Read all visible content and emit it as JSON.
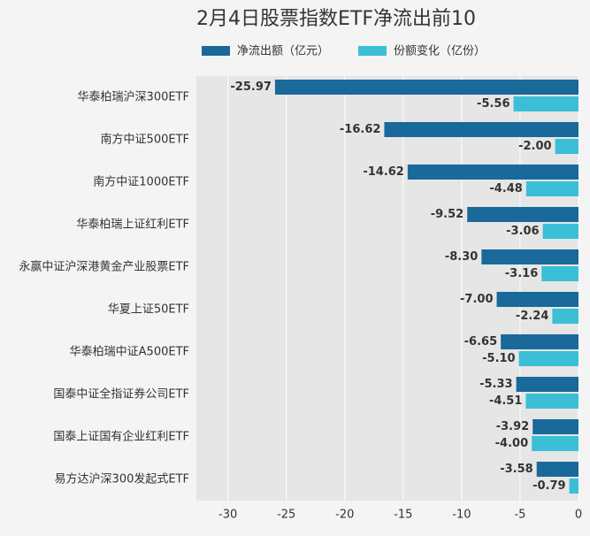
{
  "chart_data": {
    "type": "barh",
    "title": "2月4日股票指数ETF净流出前10",
    "categories": [
      "华泰柏瑞沪深300ETF",
      "南方中证500ETF",
      "南方中证1000ETF",
      "华泰柏瑞上证红利ETF",
      "永赢中证沪深港黄金产业股票ETF",
      "华夏上证50ETF",
      "华泰柏瑞中证A500ETF",
      "国泰中证全指证券公司ETF",
      "国泰上证国有企业红利ETF",
      "易方达沪深300发起式ETF"
    ],
    "series": [
      {
        "name": "净流出额（亿元）",
        "color": "#19699b",
        "values": [
          -25.97,
          -16.62,
          -14.62,
          -9.52,
          -8.3,
          -7.0,
          -6.65,
          -5.33,
          -3.92,
          -3.58
        ],
        "value_labels": [
          "-25.97",
          "-16.62",
          "-14.62",
          "-9.52",
          "-8.30",
          "-7.00",
          "-6.65",
          "-5.33",
          "-3.92",
          "-3.58"
        ]
      },
      {
        "name": "份额变化（亿份）",
        "color": "#3bbfd6",
        "values": [
          -5.56,
          -2.0,
          -4.48,
          -3.06,
          -3.16,
          -2.24,
          -5.1,
          -4.51,
          -4.0,
          -0.79
        ],
        "value_labels": [
          "-5.56",
          "-2.00",
          "-4.48",
          "-3.06",
          "-3.16",
          "-2.24",
          "-5.10",
          "-4.51",
          "-4.00",
          "-0.79"
        ]
      }
    ],
    "xlim": [
      -32.7,
      0
    ],
    "xticks": [
      -30,
      -25,
      -20,
      -15,
      -10,
      -5,
      0
    ],
    "grid": true
  }
}
